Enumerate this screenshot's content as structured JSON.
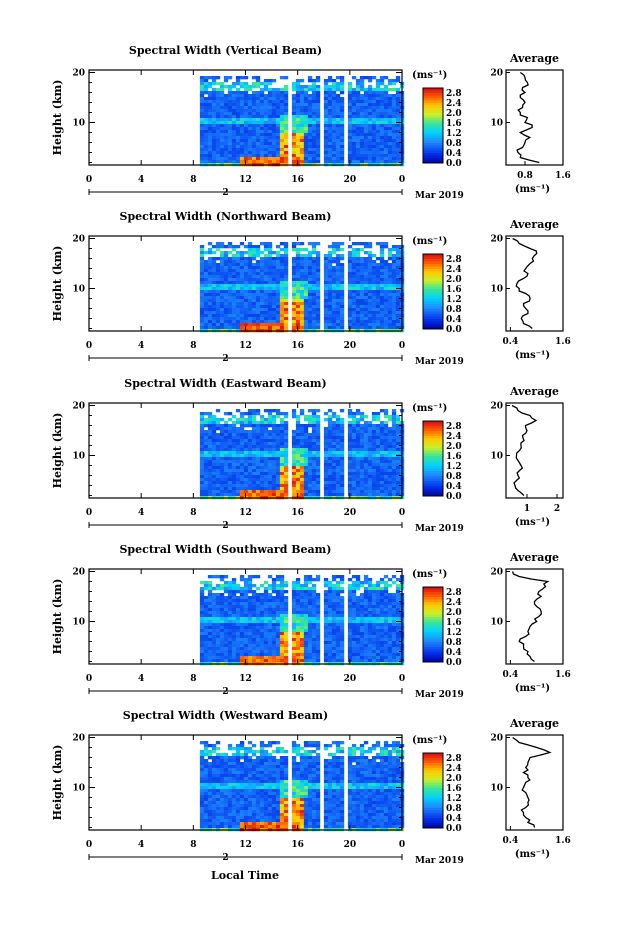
{
  "figure": {
    "xlabel_bottom": "Local Time",
    "date_label": "Mar 2019",
    "day_label": "2",
    "ylabel": "Height (km)",
    "colorbar_unit": "(ms⁻¹)",
    "colorbar_ticks": [
      "2.8",
      "2.4",
      "2.0",
      "1.6",
      "1.2",
      "0.8",
      "0.4",
      "0.0"
    ],
    "average_title": "Average",
    "average_unit": "(ms⁻¹)"
  },
  "chart_data": [
    {
      "type": "heatmap",
      "title": "Spectral Width (Vertical Beam)",
      "ylabel": "Height (km)",
      "x_ticks": [
        "0",
        "4",
        "8",
        "12",
        "16",
        "20",
        "0"
      ],
      "y_ticks": [
        "20",
        "10"
      ],
      "xlim": [
        0,
        24
      ],
      "ylim": [
        1.5,
        20.5
      ],
      "data_start_hour": 8.5,
      "data_gaps_hours": [
        [
          15.0,
          15.4
        ],
        [
          17.7,
          18.0
        ],
        [
          19.5,
          19.8
        ]
      ],
      "colorbar_range": [
        0.0,
        3.0
      ],
      "average_profile": {
        "xticks": [
          "0.8",
          "1.6"
        ],
        "xlim": [
          0.4,
          1.6
        ],
        "heights": [
          2,
          3,
          4,
          5,
          6,
          7,
          8,
          9,
          10,
          11,
          12,
          13,
          14,
          15,
          16,
          17,
          18,
          19,
          20
        ],
        "values": [
          1.1,
          0.7,
          0.65,
          0.75,
          0.8,
          0.9,
          0.7,
          0.95,
          0.8,
          0.85,
          0.7,
          0.75,
          0.8,
          0.7,
          0.8,
          0.75,
          0.85,
          0.8,
          0.7
        ]
      }
    },
    {
      "type": "heatmap",
      "title": "Spectral Width (Northward Beam)",
      "ylabel": "Height (km)",
      "x_ticks": [
        "0",
        "4",
        "8",
        "12",
        "16",
        "20",
        "0"
      ],
      "y_ticks": [
        "20",
        "10"
      ],
      "xlim": [
        0,
        24
      ],
      "ylim": [
        1.5,
        20.5
      ],
      "data_start_hour": 8.5,
      "data_gaps_hours": [
        [
          15.0,
          15.4
        ],
        [
          17.7,
          18.0
        ],
        [
          19.5,
          19.8
        ]
      ],
      "colorbar_range": [
        0.0,
        3.0
      ],
      "average_profile": {
        "xticks": [
          "0.4",
          "1.6"
        ],
        "xlim": [
          0.3,
          1.6
        ],
        "heights": [
          2,
          3,
          4,
          5,
          6,
          7,
          8,
          9,
          10,
          11,
          12,
          13,
          14,
          15,
          16,
          17,
          18,
          19,
          20
        ],
        "values": [
          0.9,
          0.7,
          0.65,
          0.8,
          0.75,
          0.7,
          0.85,
          0.75,
          0.6,
          0.55,
          0.7,
          0.8,
          0.75,
          0.85,
          0.9,
          1.0,
          0.85,
          0.6,
          0.45
        ]
      }
    },
    {
      "type": "heatmap",
      "title": "Spectral Width (Eastward Beam)",
      "ylabel": "Height (km)",
      "x_ticks": [
        "0",
        "4",
        "8",
        "12",
        "16",
        "20",
        "0"
      ],
      "y_ticks": [
        "20",
        "10"
      ],
      "xlim": [
        0,
        24
      ],
      "ylim": [
        1.5,
        20.5
      ],
      "data_start_hour": 8.5,
      "data_gaps_hours": [
        [
          15.0,
          15.4
        ],
        [
          17.7,
          18.0
        ],
        [
          19.5,
          19.8
        ]
      ],
      "colorbar_range": [
        0.0,
        3.0
      ],
      "average_profile": {
        "xticks": [
          "1",
          "2"
        ],
        "xlim": [
          0.3,
          2.2
        ],
        "heights": [
          2,
          3,
          4,
          5,
          6,
          7,
          8,
          9,
          10,
          11,
          12,
          13,
          14,
          15,
          16,
          17,
          18,
          19,
          20
        ],
        "values": [
          0.9,
          0.7,
          0.6,
          0.65,
          0.7,
          0.75,
          0.8,
          0.7,
          0.65,
          0.75,
          0.8,
          0.9,
          0.85,
          1.0,
          0.95,
          1.3,
          1.1,
          0.7,
          0.5
        ]
      }
    },
    {
      "type": "heatmap",
      "title": "Spectral Width (Southward Beam)",
      "ylabel": "Height (km)",
      "x_ticks": [
        "0",
        "4",
        "8",
        "12",
        "16",
        "20",
        "0"
      ],
      "y_ticks": [
        "20",
        "10"
      ],
      "xlim": [
        0,
        24
      ],
      "ylim": [
        1.5,
        20.5
      ],
      "data_start_hour": 8.5,
      "data_gaps_hours": [
        [
          15.0,
          15.4
        ],
        [
          17.7,
          18.0
        ],
        [
          19.5,
          19.8
        ]
      ],
      "colorbar_range": [
        0.0,
        3.0
      ],
      "average_profile": {
        "xticks": [
          "0.4",
          "1.6"
        ],
        "xlim": [
          0.3,
          1.6
        ],
        "heights": [
          2,
          3,
          4,
          5,
          6,
          7,
          8,
          9,
          10,
          11,
          12,
          13,
          14,
          15,
          16,
          17,
          18,
          19,
          20
        ],
        "values": [
          0.95,
          0.85,
          0.8,
          0.7,
          0.6,
          0.75,
          0.8,
          0.85,
          1.0,
          1.05,
          1.1,
          1.0,
          0.95,
          1.1,
          1.05,
          1.2,
          1.25,
          0.6,
          0.45
        ]
      }
    },
    {
      "type": "heatmap",
      "title": "Spectral Width (Westward Beam)",
      "ylabel": "Height (km)",
      "x_ticks": [
        "0",
        "4",
        "8",
        "12",
        "16",
        "20",
        "0"
      ],
      "y_ticks": [
        "20",
        "10"
      ],
      "xlim": [
        0,
        24
      ],
      "ylim": [
        1.5,
        20.5
      ],
      "data_start_hour": 8.5,
      "data_gaps_hours": [
        [
          15.0,
          15.4
        ],
        [
          17.7,
          18.0
        ],
        [
          19.5,
          19.8
        ]
      ],
      "colorbar_range": [
        0.0,
        3.0
      ],
      "average_profile": {
        "xticks": [
          "0.4",
          "1.6"
        ],
        "xlim": [
          0.3,
          1.6
        ],
        "heights": [
          2,
          3,
          4,
          5,
          6,
          7,
          8,
          9,
          10,
          11,
          12,
          13,
          14,
          15,
          16,
          17,
          18,
          19,
          20
        ],
        "values": [
          0.95,
          0.8,
          0.75,
          0.7,
          0.75,
          0.8,
          0.8,
          0.75,
          0.7,
          0.75,
          0.8,
          0.7,
          0.75,
          0.8,
          0.85,
          1.3,
          1.0,
          0.6,
          0.45
        ]
      }
    }
  ]
}
